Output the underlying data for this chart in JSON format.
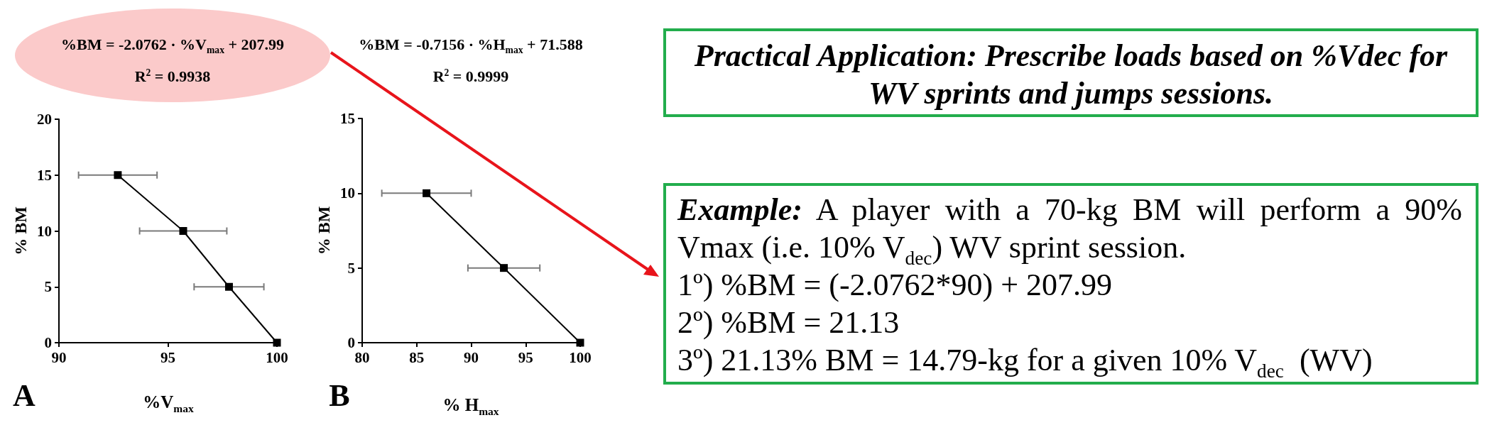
{
  "chart_data": [
    {
      "type": "line",
      "title": "%BM = -2.0762 · %V$_{max}$ + 207.99",
      "subtitle": "R$^{2}$ = 0.9938",
      "xlabel": "%V$_{max}$",
      "ylabel": "% BM",
      "annotations": [
        "A"
      ],
      "x": [
        92.7,
        95.7,
        97.8,
        100
      ],
      "values": [
        15,
        10,
        5,
        0
      ],
      "xerrors": [
        1.8,
        2.0,
        1.6,
        null
      ],
      "color": "#000000",
      "marker": "square",
      "xlim": [
        90,
        100
      ],
      "xticks": [
        90,
        95,
        100
      ],
      "ylim": [
        0,
        20
      ],
      "yticks": [
        0,
        5,
        10,
        15,
        20
      ]
    },
    {
      "type": "line",
      "title": "%BM = -0.7156 · %H$_{max}$ + 71.588",
      "subtitle": "R$^{2}$ = 0.9999",
      "xlabel": "% H$_{max}$",
      "ylabel": "% BM",
      "annotations": [
        "B"
      ],
      "x": [
        85.9,
        93.0,
        100
      ],
      "values": [
        10,
        5,
        0
      ],
      "xerrors": [
        4.1,
        3.3,
        null
      ],
      "color": "#000000",
      "marker": "square",
      "xlim": [
        80,
        100
      ],
      "xticks": [
        80,
        85,
        90,
        95,
        100
      ],
      "ylim": [
        0,
        15
      ],
      "yticks": [
        0,
        5,
        10,
        15
      ]
    },
    {
      "type": "other",
      "title": "Practical Application: Prescribe loads based on %Vdec for WV sprints and jumps sessions."
    },
    {
      "type": "other",
      "title": "Example:",
      "annotations": [
        "A player with a 70-kg BM will perform a 90%",
        "Vmax (i.e. 10% V$_{dec}$) WV sprint session.",
        "1º) %BM = (-2.0762*90) + 207.99",
        "2º) %BM = 21.13",
        "3º) 21.13% BM = 14.79-kg for a given 10% V$_{dec}$  (WV)"
      ]
    }
  ]
}
